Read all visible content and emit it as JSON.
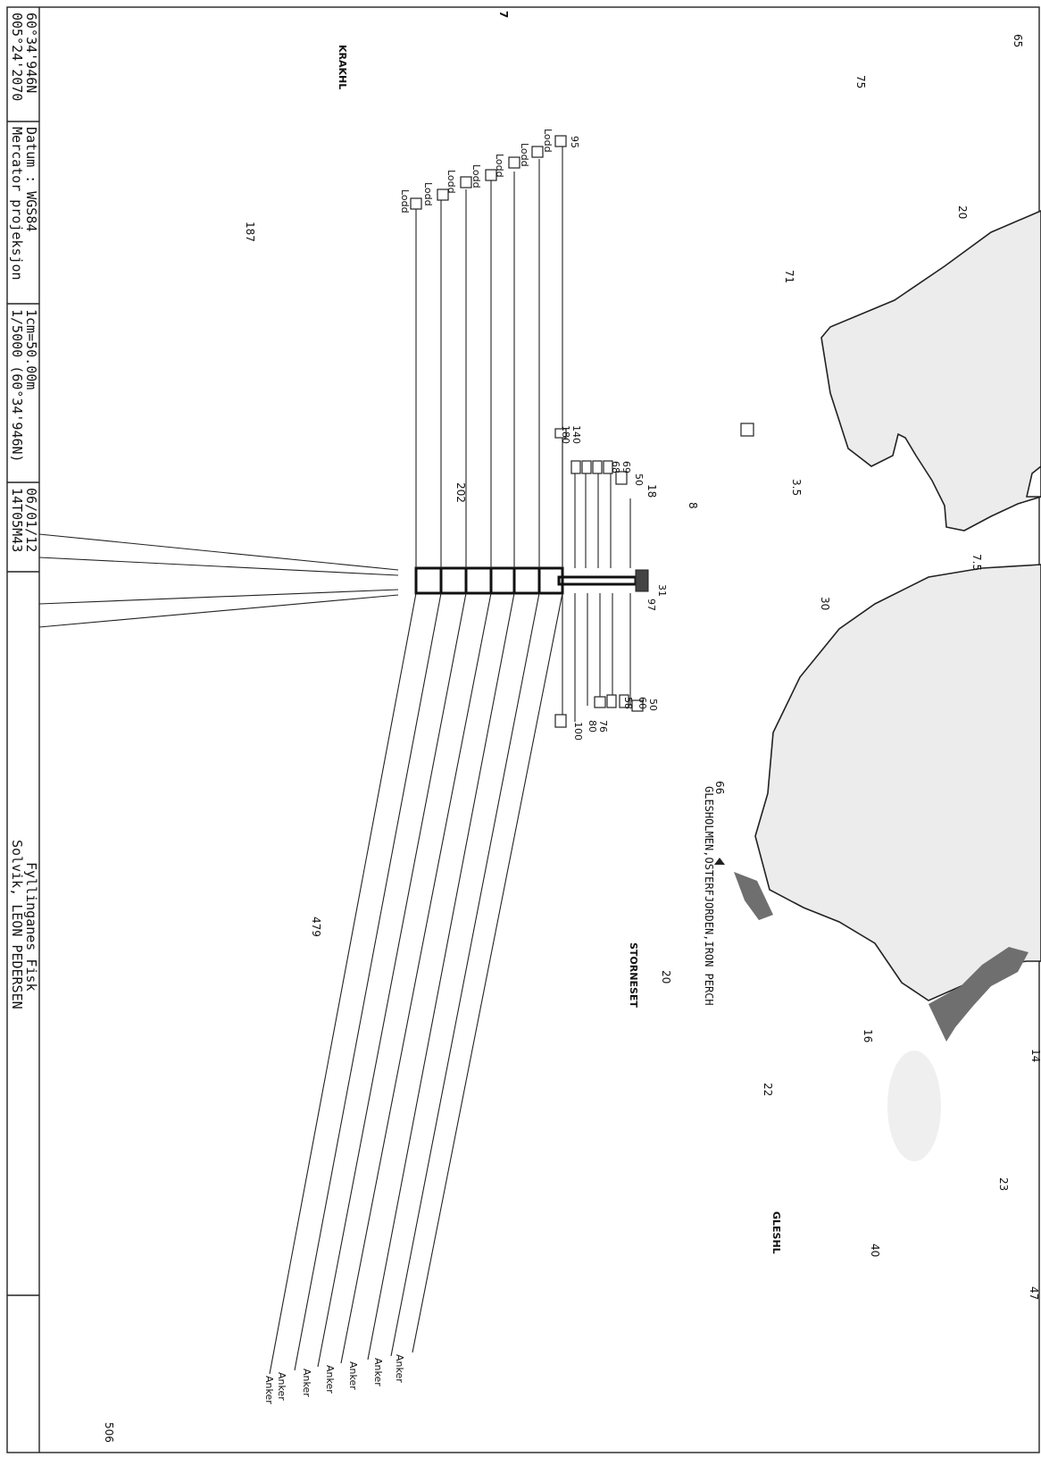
{
  "title_block": {
    "coordinates": [
      "60°34'946N",
      "005°24'2070"
    ],
    "datum": [
      "Datum : WGS84",
      "Mercator projeksjon"
    ],
    "scale": [
      "1cm=50.00m",
      "1/5000 (60°34'946N)"
    ],
    "date_code": [
      "06/01/12",
      "14T05M43"
    ],
    "site": [
      "Fyllinganes Fisk",
      "Solvik, LEON PEDERSEN"
    ]
  },
  "place_names": {
    "krakhl": "KRAKHL",
    "glesholmen": "GLESHOLMEN,OSTERFJORDEN,IRON PERCH",
    "storneset": "STORNESET",
    "gleshl": "GLESHL"
  },
  "depths": [
    "65",
    "75",
    "20",
    "71",
    "3.5",
    "8",
    "7.5",
    "30",
    "66",
    "20",
    "16",
    "14",
    "22",
    "23",
    "40",
    "47",
    "187",
    "202",
    "479",
    "506"
  ],
  "moorings": {
    "loddlabel": "Lodd",
    "anchor_label": "Anker",
    "left_depths": [
      "95",
      "",
      "",
      "",
      "",
      "",
      "",
      ""
    ],
    "bridle_numbers": [
      "140",
      "180",
      "69",
      "68",
      "58",
      "50",
      "18"
    ],
    "right_numbers": [
      "50",
      "60",
      "58",
      "76",
      "80",
      "100"
    ],
    "small_numbers": [
      "31",
      "97"
    ]
  },
  "misc": {
    "edge_mark": "7"
  }
}
